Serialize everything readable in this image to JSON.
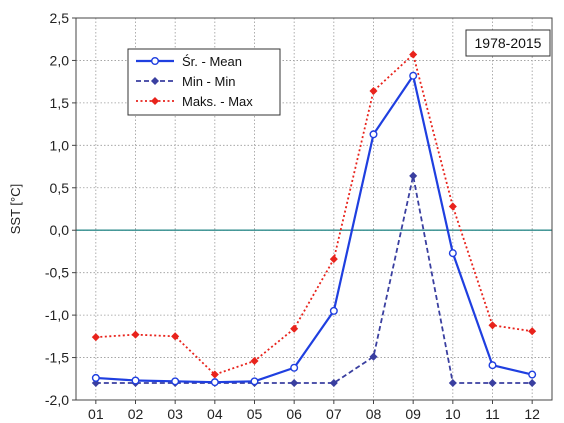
{
  "chart_data": {
    "type": "line",
    "ylabel": "SST [°C]",
    "xlabel": "",
    "categories": [
      "01",
      "02",
      "03",
      "04",
      "05",
      "06",
      "07",
      "08",
      "09",
      "10",
      "11",
      "12"
    ],
    "ylim": [
      -2.0,
      2.5
    ],
    "yticks": [
      "-2,0",
      "-1,5",
      "-1,0",
      "-0,5",
      "0,0",
      "0,5",
      "1,0",
      "1,5",
      "2,0",
      "2,5"
    ],
    "grid": true,
    "reference_line": 0.0,
    "period_label": "1978-2015",
    "legend_position": "top-left",
    "series": [
      {
        "name": "Śr. - Mean",
        "color": "#1f3fe0",
        "style": "solid",
        "marker": "open-circle",
        "values": [
          -1.74,
          -1.77,
          -1.78,
          -1.79,
          -1.78,
          -1.62,
          -0.95,
          1.13,
          1.82,
          -0.27,
          -1.59,
          -1.7
        ]
      },
      {
        "name": "Min - Min",
        "color": "#3a3fa0",
        "style": "dashed",
        "marker": "filled-diamond",
        "values": [
          -1.8,
          -1.8,
          -1.8,
          -1.8,
          -1.8,
          -1.8,
          -1.8,
          -1.49,
          0.64,
          -1.8,
          -1.8,
          -1.8
        ]
      },
      {
        "name": "Maks. - Max",
        "color": "#e8231c",
        "style": "dotted",
        "marker": "filled-diamond",
        "values": [
          -1.26,
          -1.23,
          -1.25,
          -1.7,
          -1.54,
          -1.16,
          -0.34,
          1.64,
          2.07,
          0.28,
          -1.12,
          -1.19
        ]
      }
    ],
    "colors": {
      "reference_line": "#2e8b8b",
      "grid": "#9a9a9a",
      "axis": "#444444"
    }
  }
}
